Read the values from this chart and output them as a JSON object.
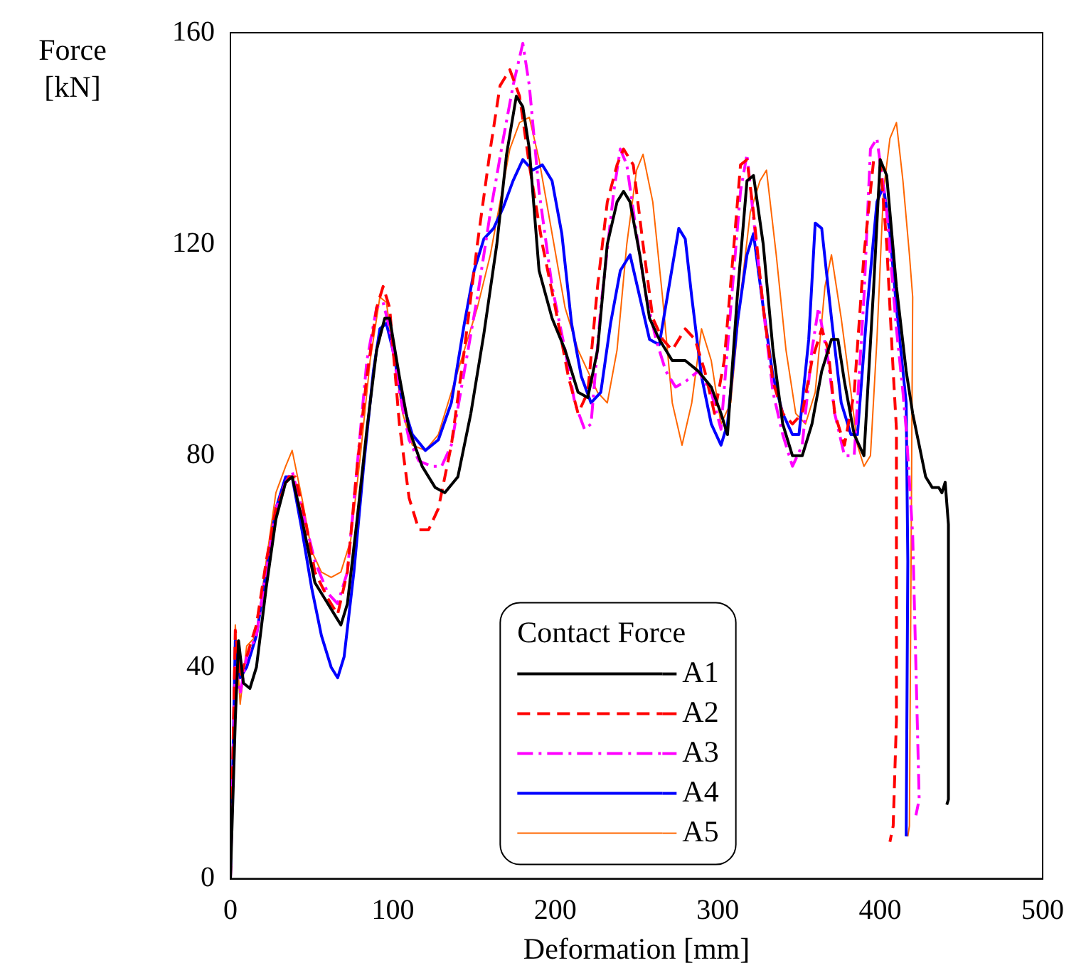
{
  "chart_data": {
    "type": "line",
    "xlabel": "Deformation [mm]",
    "ylabel": "Force [kN]",
    "legend_title": "Contact Force",
    "legend": "bottom",
    "grid": false,
    "marker": "none",
    "xlim": [
      0,
      500
    ],
    "xticks": [
      0,
      100,
      200,
      300,
      400,
      500
    ],
    "ylim": [
      0,
      160
    ],
    "yticks": [
      0,
      40,
      80,
      120,
      160
    ],
    "series": [
      {
        "name": "A1",
        "color": "#000000",
        "line_style": "solid",
        "x": [
          0,
          3,
          5,
          8,
          12,
          16,
          22,
          28,
          34,
          38,
          44,
          52,
          58,
          64,
          68,
          72,
          78,
          84,
          90,
          95,
          98,
          104,
          110,
          118,
          126,
          132,
          140,
          148,
          156,
          164,
          170,
          176,
          180,
          184,
          190,
          198,
          206,
          214,
          220,
          226,
          232,
          238,
          242,
          246,
          252,
          258,
          264,
          272,
          280,
          288,
          296,
          302,
          306,
          312,
          318,
          322,
          328,
          334,
          340,
          346,
          352,
          358,
          364,
          370,
          374,
          378,
          384,
          390,
          396,
          400,
          404,
          410,
          416,
          420,
          424,
          428,
          432,
          436,
          438,
          440,
          442,
          442,
          441
        ],
        "values": [
          0,
          30,
          45,
          37,
          36,
          40,
          55,
          68,
          75,
          76,
          68,
          56,
          53,
          50,
          48,
          52,
          68,
          85,
          100,
          106,
          106,
          95,
          85,
          78,
          74,
          73,
          76,
          88,
          103,
          120,
          137,
          148,
          146,
          138,
          115,
          106,
          100,
          92,
          91,
          100,
          120,
          128,
          130,
          128,
          118,
          106,
          102,
          98,
          98,
          96,
          93,
          88,
          84,
          110,
          132,
          133,
          120,
          100,
          86,
          80,
          80,
          86,
          96,
          102,
          102,
          94,
          84,
          80,
          112,
          136,
          133,
          112,
          96,
          88,
          82,
          76,
          74,
          74,
          73,
          75,
          67,
          15,
          14
        ]
      },
      {
        "name": "A2",
        "color": "#ff0000",
        "line_style": "dashed",
        "x": [
          0,
          3,
          6,
          10,
          16,
          22,
          28,
          36,
          40,
          46,
          52,
          60,
          66,
          72,
          78,
          84,
          90,
          94,
          98,
          104,
          110,
          116,
          122,
          128,
          136,
          144,
          152,
          160,
          166,
          172,
          178,
          184,
          192,
          200,
          208,
          214,
          220,
          226,
          232,
          238,
          242,
          248,
          254,
          260,
          266,
          272,
          280,
          286,
          292,
          298,
          304,
          310,
          314,
          318,
          322,
          328,
          334,
          340,
          346,
          352,
          358,
          364,
          368,
          372,
          378,
          384,
          390,
          396,
          400,
          404,
          408,
          410,
          410,
          408,
          406
        ],
        "values": [
          0,
          47,
          38,
          42,
          48,
          60,
          70,
          76,
          76,
          68,
          58,
          53,
          50,
          58,
          78,
          95,
          108,
          112,
          108,
          86,
          72,
          66,
          66,
          70,
          82,
          100,
          120,
          138,
          150,
          153,
          148,
          135,
          120,
          108,
          95,
          88,
          92,
          112,
          128,
          135,
          138,
          135,
          120,
          106,
          102,
          100,
          104,
          102,
          96,
          88,
          98,
          120,
          135,
          136,
          126,
          108,
          94,
          88,
          86,
          88,
          98,
          104,
          100,
          88,
          82,
          92,
          118,
          136,
          136,
          120,
          96,
          85,
          30,
          10,
          7
        ]
      },
      {
        "name": "A3",
        "color": "#ff00ff",
        "line_style": "dashdot",
        "x": [
          0,
          3,
          6,
          10,
          16,
          22,
          28,
          34,
          38,
          44,
          52,
          60,
          66,
          72,
          78,
          84,
          90,
          94,
          98,
          104,
          110,
          116,
          124,
          130,
          136,
          144,
          152,
          160,
          168,
          174,
          180,
          184,
          190,
          198,
          206,
          212,
          218,
          222,
          228,
          236,
          240,
          244,
          250,
          256,
          262,
          268,
          274,
          280,
          288,
          296,
          302,
          308,
          314,
          318,
          322,
          328,
          334,
          340,
          346,
          352,
          358,
          362,
          368,
          372,
          378,
          384,
          390,
          394,
          398,
          404,
          410,
          414,
          416,
          420,
          424,
          422
        ],
        "values": [
          0,
          40,
          35,
          42,
          46,
          58,
          70,
          75,
          77,
          70,
          60,
          54,
          52,
          58,
          78,
          98,
          108,
          109,
          104,
          92,
          83,
          79,
          78,
          78,
          82,
          96,
          110,
          126,
          140,
          150,
          158,
          150,
          130,
          112,
          100,
          90,
          85,
          86,
          108,
          130,
          138,
          135,
          122,
          110,
          102,
          96,
          93,
          94,
          96,
          92,
          85,
          108,
          130,
          137,
          125,
          108,
          92,
          84,
          78,
          82,
          100,
          108,
          98,
          88,
          80,
          80,
          110,
          138,
          140,
          126,
          104,
          92,
          85,
          65,
          15,
          12
        ]
      },
      {
        "name": "A4",
        "color": "#0000ff",
        "line_style": "solid",
        "x": [
          0,
          3,
          6,
          10,
          16,
          22,
          28,
          34,
          38,
          44,
          50,
          56,
          62,
          66,
          70,
          76,
          82,
          88,
          92,
          96,
          100,
          106,
          112,
          120,
          128,
          136,
          144,
          150,
          156,
          162,
          168,
          174,
          180,
          186,
          192,
          198,
          204,
          210,
          216,
          222,
          228,
          234,
          240,
          246,
          252,
          258,
          264,
          270,
          276,
          280,
          284,
          290,
          296,
          302,
          306,
          312,
          318,
          322,
          328,
          334,
          340,
          346,
          350,
          356,
          360,
          364,
          370,
          376,
          382,
          386,
          392,
          398,
          402,
          406,
          410,
          414,
          416,
          417,
          416
        ],
        "values": [
          0,
          45,
          38,
          40,
          46,
          58,
          70,
          76,
          76,
          66,
          55,
          46,
          40,
          38,
          42,
          58,
          78,
          96,
          104,
          105,
          100,
          90,
          84,
          81,
          83,
          90,
          105,
          115,
          121,
          123,
          127,
          132,
          136,
          134,
          135,
          132,
          122,
          105,
          95,
          90,
          92,
          105,
          115,
          118,
          110,
          102,
          101,
          112,
          123,
          121,
          110,
          95,
          86,
          82,
          86,
          105,
          118,
          122,
          108,
          95,
          88,
          84,
          84,
          102,
          124,
          123,
          106,
          90,
          84,
          84,
          108,
          128,
          131,
          122,
          108,
          96,
          90,
          60,
          8
        ]
      },
      {
        "name": "A5",
        "color": "#ff6600",
        "line_style": "solid",
        "x": [
          0,
          3,
          6,
          10,
          16,
          22,
          28,
          34,
          38,
          44,
          50,
          56,
          62,
          68,
          74,
          80,
          86,
          92,
          96,
          100,
          106,
          112,
          120,
          128,
          136,
          144,
          152,
          160,
          166,
          172,
          178,
          184,
          190,
          198,
          206,
          214,
          220,
          226,
          232,
          238,
          244,
          250,
          254,
          260,
          266,
          272,
          278,
          284,
          290,
          296,
          302,
          308,
          314,
          320,
          326,
          330,
          336,
          342,
          348,
          354,
          360,
          366,
          370,
          376,
          382,
          386,
          390,
          394,
          398,
          402,
          406,
          410,
          414,
          418,
          420,
          419,
          418,
          417
        ],
        "values": [
          0,
          48,
          33,
          44,
          46,
          60,
          73,
          78,
          81,
          72,
          62,
          58,
          57,
          58,
          64,
          80,
          98,
          110,
          109,
          100,
          88,
          82,
          81,
          84,
          92,
          100,
          108,
          118,
          128,
          138,
          143,
          144,
          136,
          122,
          108,
          100,
          96,
          92,
          90,
          100,
          120,
          134,
          137,
          128,
          110,
          90,
          82,
          90,
          104,
          98,
          86,
          90,
          110,
          126,
          132,
          134,
          118,
          100,
          88,
          86,
          92,
          112,
          118,
          106,
          92,
          82,
          78,
          80,
          102,
          130,
          140,
          143,
          132,
          118,
          110,
          60,
          10,
          8
        ]
      }
    ]
  }
}
